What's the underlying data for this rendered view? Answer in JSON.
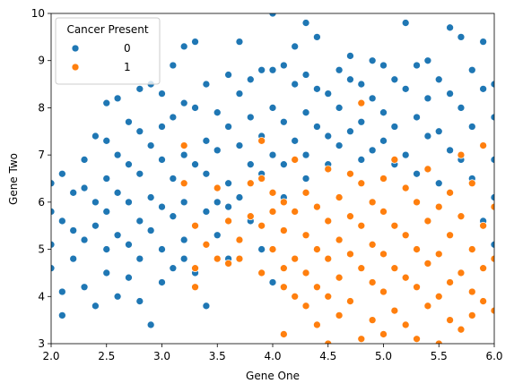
{
  "chart_data": {
    "type": "scatter",
    "x_label": "Gene One",
    "y_label": "Gene Two",
    "legend_title": "Cancer Present",
    "legend_position": "upper left",
    "grid": false,
    "xlim": [
      2,
      6
    ],
    "ylim": [
      3,
      10
    ],
    "xticks": [
      {
        "value": 2,
        "label": "2.0"
      },
      2.5,
      {
        "value": 3,
        "label": "3.0"
      },
      3.5,
      {
        "value": 4,
        "label": "4.0"
      },
      4.5,
      {
        "value": 5,
        "label": "5.0"
      },
      5.5,
      {
        "value": 6,
        "label": "6.0"
      }
    ],
    "yticks": [
      3,
      4,
      5,
      6,
      7,
      8,
      9,
      10
    ],
    "series": [
      {
        "name": "0",
        "color": "#1f77b4",
        "x": [
          2,
          2,
          2,
          2,
          2.1,
          2.1,
          2.1,
          2.1,
          2.2,
          2.2,
          2.2,
          2.3,
          2.3,
          2.3,
          2.3,
          2.4,
          2.4,
          2.4,
          2.4,
          2.5,
          2.5,
          2.5,
          2.5,
          2.5,
          2.5,
          2.6,
          2.6,
          2.6,
          2.6,
          2.6,
          2.7,
          2.7,
          2.7,
          2.7,
          2.7,
          2.8,
          2.8,
          2.8,
          2.8,
          2.8,
          2.8,
          2.9,
          2.9,
          2.9,
          2.9,
          2.9,
          3,
          3,
          3,
          3,
          3,
          3,
          3.1,
          3.1,
          3.1,
          3.1,
          3.1,
          3.2,
          3.2,
          3.2,
          3.2,
          3.2,
          3.2,
          3.3,
          3.3,
          3.3,
          3.3,
          3.3,
          3.4,
          3.4,
          3.4,
          3.4,
          3.4,
          3.5,
          3.5,
          3.5,
          3.5,
          3.6,
          3.6,
          3.6,
          3.6,
          3.6,
          3.7,
          3.7,
          3.7,
          3.7,
          3.7,
          3.8,
          3.8,
          3.8,
          3.8,
          3.9,
          3.9,
          3.9,
          3.9,
          4,
          4,
          4,
          4,
          4,
          4.1,
          4.1,
          4.1,
          4.1,
          4.2,
          4.2,
          4.2,
          4.3,
          4.3,
          4.3,
          4.3,
          4.3,
          4.4,
          4.4,
          4.4,
          4.5,
          4.5,
          4.5,
          4.6,
          4.6,
          4.6,
          4.7,
          4.7,
          4.7,
          4.8,
          4.8,
          4.8,
          4.9,
          4.9,
          4.9,
          5,
          5,
          5,
          5.1,
          5.1,
          5.1,
          5.2,
          5.2,
          5.2,
          5.3,
          5.3,
          5.3,
          5.4,
          5.4,
          5.4,
          5.5,
          5.5,
          5.5,
          5.6,
          5.6,
          5.6,
          5.7,
          5.7,
          5.7,
          5.8,
          5.8,
          5.8,
          5.9,
          5.9,
          5.9,
          5.9,
          6,
          6,
          6,
          6,
          6
        ],
        "y": [
          6.4,
          5.8,
          5.1,
          4.6,
          6.6,
          5.6,
          4.1,
          3.6,
          6.2,
          5.4,
          4.8,
          6.9,
          6.3,
          5.2,
          4.2,
          7.4,
          6,
          5.5,
          3.8,
          8.1,
          7.3,
          6.5,
          5.8,
          5,
          4.5,
          8.2,
          7,
          6.2,
          5.3,
          4,
          7.7,
          6.8,
          6,
          5.1,
          4.4,
          8.4,
          7.5,
          6.6,
          5.6,
          4.8,
          3.9,
          8.5,
          7.2,
          6.1,
          5.4,
          3.4,
          8.3,
          7.6,
          6.9,
          5.9,
          5,
          4.3,
          8.9,
          7.8,
          6.5,
          5.7,
          4.6,
          9.3,
          8.1,
          7,
          6,
          5.2,
          4.8,
          9.4,
          8,
          6.8,
          5.5,
          4.5,
          8.5,
          7.3,
          6.6,
          5.8,
          3.8,
          7.9,
          7.1,
          6,
          5.3,
          8.7,
          7.6,
          6.4,
          5.9,
          4.8,
          9.4,
          8.3,
          7.2,
          6.1,
          5.2,
          8.6,
          7.8,
          6.8,
          5.6,
          8.8,
          7.4,
          6.6,
          5,
          10,
          8.8,
          8,
          7,
          4.3,
          8.9,
          7.7,
          6.8,
          6.1,
          9.3,
          8.5,
          7.3,
          9.8,
          8.7,
          7.9,
          7,
          6.5,
          9.5,
          8.4,
          7.6,
          8.3,
          7.4,
          6.8,
          8.8,
          8,
          7.2,
          9.1,
          8.6,
          7.5,
          8.5,
          7.7,
          6.9,
          9,
          8.2,
          7.1,
          8.9,
          7.9,
          7.3,
          8.6,
          7.6,
          6.8,
          9.8,
          8.4,
          7,
          8.9,
          7.8,
          6.6,
          9,
          8.2,
          7.4,
          8.6,
          7.5,
          6.4,
          9.7,
          8.3,
          7.1,
          9.5,
          8,
          6.9,
          8.8,
          7.6,
          6.5,
          9.4,
          8.4,
          7.2,
          5.6,
          8.5,
          7.8,
          6.9,
          6.1,
          5.1
        ]
      },
      {
        "name": "1",
        "color": "#ff7f0e",
        "x": [
          3.2,
          3.2,
          3.3,
          3.3,
          3.3,
          3.4,
          3.5,
          3.5,
          3.6,
          3.6,
          3.7,
          3.7,
          3.8,
          3.8,
          3.9,
          3.9,
          3.9,
          3.9,
          4,
          4,
          4,
          4.1,
          4.1,
          4.1,
          4.1,
          4.1,
          4.2,
          4.2,
          4.2,
          4.2,
          4.3,
          4.3,
          4.3,
          4.3,
          4.4,
          4.4,
          4.4,
          4.4,
          4.5,
          4.5,
          4.5,
          4.5,
          4.5,
          4.6,
          4.6,
          4.6,
          4.6,
          4.7,
          4.7,
          4.7,
          4.7,
          4.8,
          4.8,
          4.8,
          4.8,
          4.8,
          4.9,
          4.9,
          4.9,
          4.9,
          5,
          5,
          5,
          5,
          5,
          5.1,
          5.1,
          5.1,
          5.1,
          5.2,
          5.2,
          5.2,
          5.2,
          5.3,
          5.3,
          5.3,
          5.3,
          5.4,
          5.4,
          5.4,
          5.4,
          5.5,
          5.5,
          5.5,
          5.5,
          5.6,
          5.6,
          5.6,
          5.6,
          5.7,
          5.7,
          5.7,
          5.7,
          5.8,
          5.8,
          5.8,
          5.8,
          5.9,
          5.9,
          5.9,
          5.9,
          6,
          6,
          6
        ],
        "y": [
          7.2,
          6.4,
          5.5,
          4.6,
          4.2,
          5.1,
          6.3,
          4.8,
          4.7,
          5.6,
          5.2,
          4.8,
          5.7,
          6.4,
          7.3,
          6.5,
          5.5,
          4.5,
          6.2,
          5.8,
          5,
          6,
          5.4,
          4.6,
          3.2,
          4.2,
          6.9,
          5.8,
          4.8,
          4,
          6.2,
          5.3,
          4.5,
          3.8,
          5.9,
          5,
          4.2,
          3.4,
          6.7,
          5.6,
          4.8,
          4,
          3,
          6.1,
          5.2,
          4.4,
          3.6,
          6.6,
          5.7,
          4.9,
          3.9,
          8.1,
          6.4,
          5.5,
          4.6,
          3.1,
          6,
          5.1,
          4.3,
          3.5,
          6.5,
          5.8,
          4.9,
          4.1,
          3.2,
          6.9,
          5.5,
          4.6,
          3.7,
          6.3,
          5.3,
          4.4,
          3.4,
          6,
          5,
          4.2,
          3.1,
          6.7,
          5.6,
          4.7,
          3.8,
          5.9,
          4.9,
          4,
          3,
          6.2,
          5.3,
          4.3,
          3.5,
          7,
          5.7,
          4.5,
          3.3,
          6.4,
          5,
          4.1,
          3.6,
          7.2,
          5.5,
          4.6,
          3.9,
          5.9,
          4.8,
          3.7
        ]
      }
    ]
  }
}
